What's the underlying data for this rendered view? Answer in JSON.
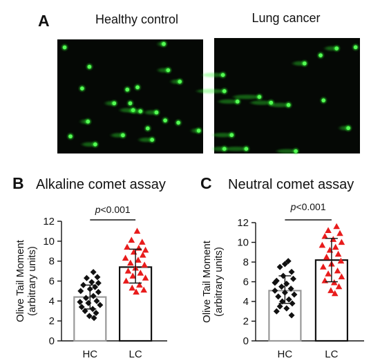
{
  "panel_a": {
    "letter": "A",
    "images": [
      {
        "caption": "Healthy control",
        "comets": [
          [
            0.05,
            0.07,
            0
          ],
          [
            0.22,
            0.24,
            0
          ],
          [
            0.73,
            0.04,
            0.03
          ],
          [
            0.76,
            0.27,
            0.06
          ],
          [
            0.17,
            0.43,
            0
          ],
          [
            0.48,
            0.44,
            0
          ],
          [
            0.55,
            0.42,
            0
          ],
          [
            0.84,
            0.37,
            0.05
          ],
          [
            0.39,
            0.56,
            0.05
          ],
          [
            0.5,
            0.56,
            0
          ],
          [
            0.52,
            0.62,
            0.08
          ],
          [
            0.57,
            0.63,
            0.07
          ],
          [
            0.68,
            0.64,
            0.07
          ],
          [
            0.74,
            0.71,
            0
          ],
          [
            0.83,
            0.73,
            0
          ],
          [
            0.62,
            0.78,
            0
          ],
          [
            0.97,
            0.8,
            0.04
          ],
          [
            0.21,
            0.72,
            0.04
          ],
          [
            0.09,
            0.85,
            0
          ],
          [
            0.45,
            0.84,
            0.07
          ],
          [
            0.65,
            0.88,
            0.08
          ],
          [
            0.26,
            0.92,
            0.08
          ]
        ]
      },
      {
        "caption": "Lung cancer",
        "comets": [
          [
            0.06,
            0.32,
            0.13
          ],
          [
            0.07,
            0.46,
            0.18
          ],
          [
            0.31,
            0.51,
            0.17
          ],
          [
            0.16,
            0.55,
            0.12
          ],
          [
            0.39,
            0.56,
            0.13
          ],
          [
            0.51,
            0.58,
            0.12
          ],
          [
            0.73,
            0.15,
            0
          ],
          [
            0.84,
            0.09,
            0.07
          ],
          [
            0.97,
            0.08,
            0
          ],
          [
            0.62,
            0.22,
            0.07
          ],
          [
            0.75,
            0.54,
            0
          ],
          [
            0.12,
            0.84,
            0.12
          ],
          [
            0.22,
            0.96,
            0.14
          ],
          [
            0.56,
            0.98,
            0.12
          ],
          [
            0.92,
            0.78,
            0.05
          ],
          [
            0.07,
            0.96,
            0.07
          ]
        ]
      }
    ]
  },
  "colors": {
    "bg_dark": "#050805",
    "comet": "#33ff33",
    "hc_bar": "#999999",
    "lc_bar": "#111111",
    "hc_marker": "#111111",
    "lc_marker": "#e81c1c"
  },
  "chart_data": [
    {
      "letter": "B",
      "title": "Alkaline comet assay",
      "type": "bar",
      "ylabel": "Olive Tail Moment (arbitrary units)",
      "ylabel_lines": [
        "Olive Tail Moment",
        "(arbitrary units)"
      ],
      "ylim": [
        0,
        12
      ],
      "yticks": [
        0,
        2,
        4,
        6,
        8,
        10,
        12
      ],
      "categories": [
        "HC",
        "LC"
      ],
      "bar_heights": [
        4.4,
        7.4
      ],
      "error": [
        [
          3.2,
          5.6
        ],
        [
          5.8,
          9.2
        ]
      ],
      "p_text": "p<0.001",
      "series": [
        {
          "category": "HC",
          "marker": "diamond",
          "points": [
            [
              0.1,
              6.9
            ],
            [
              -0.1,
              6.3
            ],
            [
              0.22,
              6.4
            ],
            [
              0.05,
              5.9
            ],
            [
              -0.2,
              5.6
            ],
            [
              0.15,
              5.4
            ],
            [
              0.0,
              5.2
            ],
            [
              -0.28,
              5.0
            ],
            [
              0.25,
              4.9
            ],
            [
              0.1,
              4.5
            ],
            [
              -0.12,
              4.3
            ],
            [
              0.2,
              4.0
            ],
            [
              -0.05,
              3.8
            ],
            [
              0.3,
              3.6
            ],
            [
              -0.25,
              3.4
            ],
            [
              0.08,
              3.2
            ],
            [
              -0.15,
              3.0
            ],
            [
              0.18,
              2.8
            ],
            [
              -0.02,
              2.5
            ],
            [
              0.12,
              2.3
            ],
            [
              -0.3,
              3.9
            ],
            [
              0.25,
              5.8
            ]
          ]
        },
        {
          "category": "LC",
          "marker": "triangle",
          "points": [
            [
              0.05,
              11.0
            ],
            [
              -0.12,
              10.1
            ],
            [
              0.2,
              9.9
            ],
            [
              -0.25,
              9.4
            ],
            [
              0.1,
              9.3
            ],
            [
              0.3,
              9.1
            ],
            [
              -0.05,
              8.9
            ],
            [
              0.22,
              8.6
            ],
            [
              -0.3,
              8.3
            ],
            [
              0.08,
              8.1
            ],
            [
              -0.15,
              7.8
            ],
            [
              0.27,
              7.6
            ],
            [
              0.0,
              7.3
            ],
            [
              -0.22,
              7.0
            ],
            [
              0.15,
              6.8
            ],
            [
              -0.08,
              6.5
            ],
            [
              0.3,
              6.3
            ],
            [
              -0.28,
              6.0
            ],
            [
              0.12,
              5.6
            ],
            [
              -0.1,
              5.3
            ],
            [
              0.25,
              5.1
            ],
            [
              0.02,
              4.9
            ]
          ]
        }
      ]
    },
    {
      "letter": "C",
      "title": "Neutral comet assay",
      "type": "bar",
      "ylabel": "Olive Tail Moment (arbitrary units)",
      "ylabel_lines": [
        "Olive Tail Moment",
        "(arbitrary units)"
      ],
      "ylim": [
        0,
        12
      ],
      "yticks": [
        0,
        2,
        4,
        6,
        8,
        10,
        12
      ],
      "categories": [
        "HC",
        "LC"
      ],
      "bar_heights": [
        5.1,
        8.2
      ],
      "error": [
        [
          3.8,
          6.6
        ],
        [
          6.0,
          10.4
        ]
      ],
      "p_text": "p<0.001",
      "series": [
        {
          "category": "HC",
          "marker": "diamond",
          "points": [
            [
              0.1,
              8.1
            ],
            [
              -0.15,
              7.5
            ],
            [
              0.2,
              7.0
            ],
            [
              -0.05,
              6.6
            ],
            [
              0.25,
              6.3
            ],
            [
              -0.25,
              6.1
            ],
            [
              0.05,
              5.8
            ],
            [
              -0.1,
              5.5
            ],
            [
              0.18,
              5.3
            ],
            [
              -0.3,
              5.1
            ],
            [
              0.0,
              4.9
            ],
            [
              0.28,
              4.7
            ],
            [
              -0.2,
              4.5
            ],
            [
              0.12,
              4.2
            ],
            [
              -0.08,
              4.0
            ],
            [
              0.22,
              3.8
            ],
            [
              -0.15,
              3.5
            ],
            [
              0.05,
              3.3
            ],
            [
              -0.25,
              3.0
            ],
            [
              0.2,
              2.6
            ],
            [
              0.0,
              7.8
            ],
            [
              -0.3,
              5.9
            ]
          ]
        },
        {
          "category": "LC",
          "marker": "triangle",
          "points": [
            [
              0.15,
              11.6
            ],
            [
              -0.1,
              11.2
            ],
            [
              0.25,
              10.9
            ],
            [
              -0.2,
              10.6
            ],
            [
              0.05,
              10.3
            ],
            [
              0.3,
              10.0
            ],
            [
              -0.28,
              9.7
            ],
            [
              0.12,
              9.5
            ],
            [
              -0.05,
              9.2
            ],
            [
              0.2,
              8.8
            ],
            [
              -0.15,
              8.5
            ],
            [
              0.28,
              8.1
            ],
            [
              0.0,
              7.8
            ],
            [
              -0.25,
              7.5
            ],
            [
              0.18,
              7.1
            ],
            [
              -0.1,
              6.8
            ],
            [
              0.3,
              6.5
            ],
            [
              -0.2,
              6.1
            ],
            [
              0.08,
              5.9
            ],
            [
              0.22,
              5.5
            ],
            [
              -0.02,
              5.1
            ],
            [
              0.1,
              4.8
            ]
          ]
        }
      ]
    }
  ]
}
